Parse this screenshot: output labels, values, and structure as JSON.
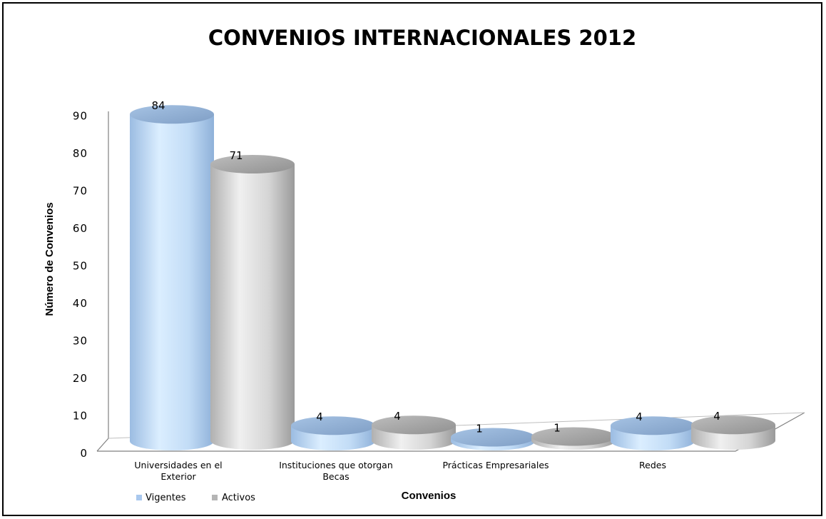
{
  "chart_data": {
    "type": "bar",
    "style": "3d-cylinder",
    "title": "CONVENIOS INTERNACIONALES 2012",
    "xlabel": "Convenios",
    "ylabel": "Número de Convenios",
    "ylim": [
      0,
      90
    ],
    "yticks": [
      "0",
      "10",
      "20",
      "30",
      "40",
      "50",
      "60",
      "70",
      "80",
      "90"
    ],
    "grid": false,
    "legend_position": "bottom-left",
    "categories": [
      [
        "Universidades en el",
        "Exterior"
      ],
      [
        "Instituciones que otorgan",
        "Becas"
      ],
      [
        "Prácticas Empresariales"
      ],
      [
        "Redes"
      ]
    ],
    "series": [
      {
        "name": "Vigentes",
        "values": [
          84,
          4,
          1,
          4
        ],
        "color": "#a9c8ee"
      },
      {
        "name": "Activos",
        "values": [
          71,
          4,
          1,
          4
        ],
        "color": "#b5b5b5"
      }
    ],
    "data_labels": true
  }
}
